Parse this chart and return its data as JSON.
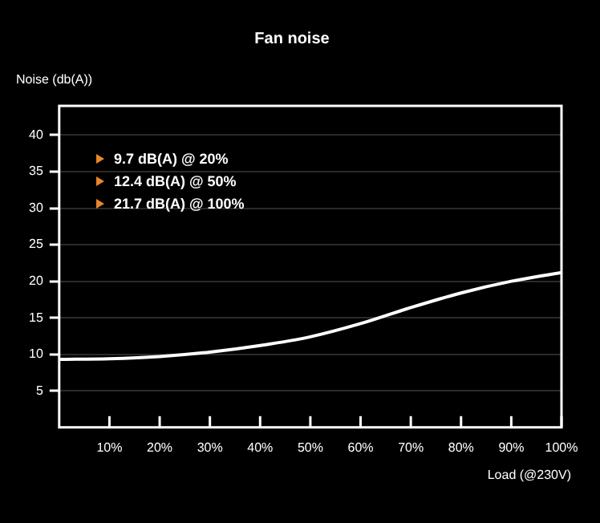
{
  "chart_data": {
    "type": "line",
    "title": "Fan noise",
    "xlabel": "Load (@230V)",
    "ylabel": "Noise (db(A))",
    "x": [
      0,
      10,
      20,
      30,
      40,
      50,
      60,
      70,
      80,
      90,
      100
    ],
    "series": [
      {
        "color": "#ffffff",
        "values": [
          9.3,
          9.4,
          9.7,
          10.3,
          11.2,
          12.4,
          14.2,
          16.4,
          18.4,
          20,
          21.2
        ]
      }
    ],
    "xlim": [
      0,
      100
    ],
    "ylim": [
      0,
      44
    ],
    "xticks": [
      {
        "value": 10,
        "label": "10%"
      },
      {
        "value": 20,
        "label": "20%"
      },
      {
        "value": 30,
        "label": "30%"
      },
      {
        "value": 40,
        "label": "40%"
      },
      {
        "value": 50,
        "label": "50%"
      },
      {
        "value": 60,
        "label": "60%"
      },
      {
        "value": 70,
        "label": "70%"
      },
      {
        "value": 80,
        "label": "80%"
      },
      {
        "value": 90,
        "label": "90%"
      },
      {
        "value": 100,
        "label": "100%"
      }
    ],
    "yticks": [
      5,
      10,
      15,
      20,
      25,
      30,
      35,
      40
    ],
    "annotations": [
      "9.7 dB(A) @ 20%",
      "12.4 dB(A) @ 50%",
      "21.7 dB(A) @ 100%"
    ],
    "grid": "y",
    "marker": "none",
    "line_style": "solid",
    "legend": false
  }
}
